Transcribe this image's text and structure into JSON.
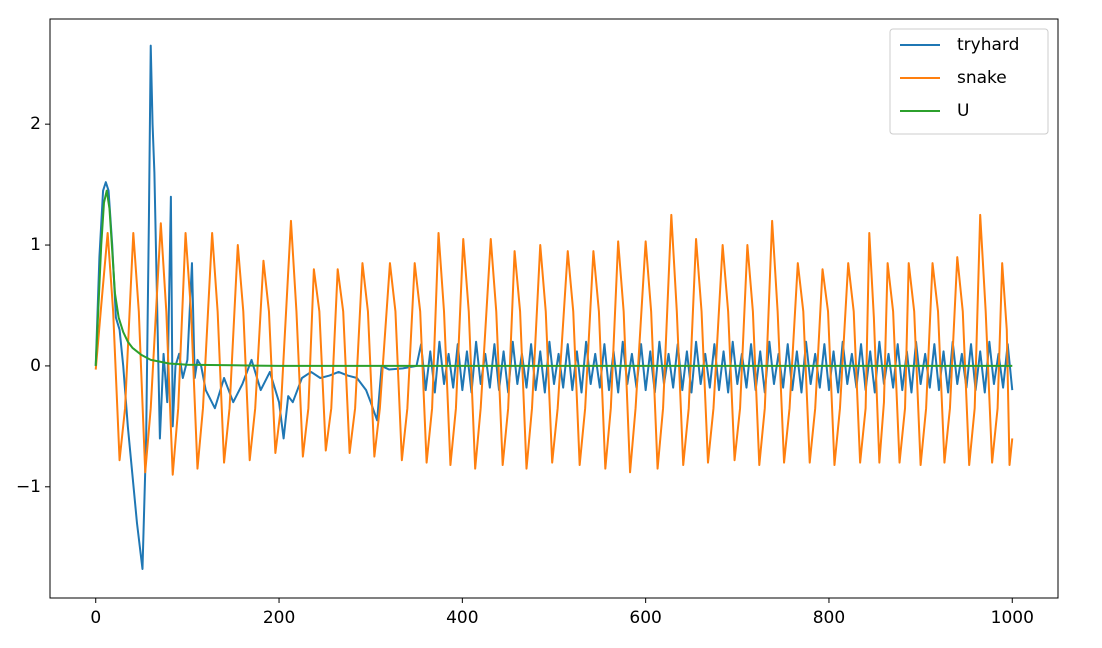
{
  "chart_data": {
    "type": "line",
    "xlim": [
      -49.9,
      1049.9
    ],
    "xticks": [
      0,
      200,
      400,
      600,
      800,
      1000
    ],
    "ylim": [
      -1.92,
      2.87
    ],
    "yticks": [
      {
        "value": -1,
        "label": "−1"
      },
      0,
      1,
      2
    ],
    "grid": false,
    "legend": "upper right",
    "series": [
      {
        "name": "tryhard",
        "color": "#1f77b4",
        "x": [
          0,
          4,
          8,
          11,
          14,
          18,
          22,
          26,
          30,
          35,
          40,
          45,
          51,
          55,
          58,
          60,
          62,
          64,
          67,
          70,
          74,
          78,
          82,
          84,
          87,
          91,
          95,
          100,
          105,
          108,
          111,
          115,
          120,
          130,
          140,
          150,
          160,
          170,
          180,
          190,
          200,
          205,
          210,
          215,
          225,
          235,
          245,
          255,
          265,
          275,
          285,
          295,
          300,
          307,
          312,
          320,
          335,
          350,
          355,
          360,
          365,
          370,
          375,
          380,
          385,
          390,
          395,
          400,
          405,
          410,
          415,
          420,
          425,
          430,
          435,
          440,
          445,
          450,
          455,
          460,
          465,
          470,
          475,
          480,
          485,
          490,
          495,
          500,
          505,
          510,
          515,
          520,
          525,
          530,
          535,
          540,
          545,
          550,
          555,
          560,
          565,
          570,
          575,
          580,
          585,
          590,
          595,
          600,
          605,
          610,
          615,
          620,
          625,
          630,
          635,
          640,
          645,
          650,
          655,
          660,
          665,
          670,
          675,
          680,
          685,
          690,
          695,
          700,
          705,
          710,
          715,
          720,
          725,
          730,
          735,
          740,
          745,
          750,
          755,
          760,
          765,
          770,
          775,
          780,
          785,
          790,
          795,
          800,
          805,
          810,
          815,
          820,
          825,
          830,
          835,
          840,
          845,
          850,
          855,
          860,
          865,
          870,
          875,
          880,
          885,
          890,
          895,
          900,
          905,
          910,
          915,
          920,
          925,
          930,
          935,
          940,
          945,
          950,
          955,
          960,
          965,
          970,
          975,
          980,
          985,
          990,
          995,
          1000
        ],
        "values": [
          0,
          0.9,
          1.45,
          1.52,
          1.45,
          1.0,
          0.4,
          0.3,
          0.0,
          -0.5,
          -0.9,
          -1.3,
          -1.68,
          -0.6,
          1.2,
          2.65,
          2.0,
          1.6,
          0.5,
          -0.6,
          0.1,
          -0.3,
          1.4,
          -0.5,
          0.0,
          0.1,
          -0.1,
          0.05,
          0.85,
          -0.1,
          0.05,
          0.0,
          -0.2,
          -0.35,
          -0.1,
          -0.3,
          -0.15,
          0.05,
          -0.2,
          -0.05,
          -0.3,
          -0.6,
          -0.25,
          -0.3,
          -0.1,
          -0.05,
          -0.1,
          -0.08,
          -0.05,
          -0.08,
          -0.1,
          -0.2,
          -0.3,
          -0.45,
          0.0,
          -0.03,
          -0.02,
          0.0,
          0.18,
          -0.2,
          0.12,
          -0.22,
          0.2,
          -0.15,
          0.1,
          -0.18,
          0.18,
          -0.2,
          0.12,
          -0.22,
          0.2,
          -0.15,
          0.1,
          -0.18,
          0.18,
          -0.2,
          0.12,
          -0.22,
          0.2,
          -0.15,
          0.1,
          -0.18,
          0.18,
          -0.2,
          0.12,
          -0.22,
          0.2,
          -0.15,
          0.1,
          -0.18,
          0.18,
          -0.2,
          0.12,
          -0.22,
          0.2,
          -0.15,
          0.1,
          -0.18,
          0.18,
          -0.2,
          0.12,
          -0.22,
          0.2,
          -0.15,
          0.1,
          -0.18,
          0.18,
          -0.2,
          0.12,
          -0.22,
          0.2,
          -0.15,
          0.1,
          -0.18,
          0.18,
          -0.2,
          0.12,
          -0.22,
          0.2,
          -0.15,
          0.1,
          -0.18,
          0.18,
          -0.2,
          0.12,
          -0.22,
          0.2,
          -0.15,
          0.1,
          -0.18,
          0.18,
          -0.2,
          0.12,
          -0.22,
          0.2,
          -0.15,
          0.1,
          -0.18,
          0.18,
          -0.2,
          0.12,
          -0.22,
          0.2,
          -0.15,
          0.1,
          -0.18,
          0.18,
          -0.2,
          0.12,
          -0.22,
          0.2,
          -0.15,
          0.1,
          -0.18,
          0.18,
          -0.2,
          0.12,
          -0.22,
          0.2,
          -0.15,
          0.1,
          -0.18,
          0.18,
          -0.2,
          0.12,
          -0.22,
          0.2,
          -0.15,
          0.1,
          -0.18,
          0.18,
          -0.2,
          0.12,
          -0.22,
          0.2,
          -0.15,
          0.1,
          -0.18,
          0.18,
          -0.2,
          0.12,
          -0.22,
          0.2,
          -0.15,
          0.1,
          -0.18,
          0.18,
          -0.2
        ]
      },
      {
        "name": "snake",
        "color": "#ff7f0e",
        "x": [
          0,
          6,
          13,
          19,
          26,
          32,
          41,
          47,
          54,
          60,
          71,
          77,
          84,
          90,
          98,
          104,
          111,
          117,
          127,
          133,
          140,
          146,
          155,
          161,
          168,
          174,
          183,
          189,
          196,
          202,
          213,
          219,
          226,
          232,
          238,
          244,
          251,
          257,
          264,
          270,
          277,
          283,
          291,
          297,
          304,
          310,
          321,
          327,
          334,
          340,
          348,
          354,
          361,
          367,
          374,
          380,
          387,
          393,
          401,
          407,
          414,
          420,
          431,
          437,
          444,
          450,
          457,
          463,
          470,
          476,
          485,
          491,
          498,
          504,
          515,
          521,
          528,
          534,
          543,
          549,
          556,
          562,
          570,
          576,
          583,
          589,
          600,
          606,
          613,
          619,
          628,
          634,
          641,
          647,
          655,
          661,
          668,
          674,
          684,
          690,
          697,
          703,
          711,
          717,
          724,
          730,
          738,
          744,
          751,
          757,
          766,
          772,
          779,
          785,
          793,
          799,
          806,
          812,
          821,
          827,
          834,
          840,
          844,
          849,
          855,
          860,
          864,
          870,
          877,
          883,
          887,
          893,
          900,
          906,
          913,
          919,
          926,
          932,
          940,
          946,
          953,
          959,
          965,
          971,
          978,
          984,
          989,
          994,
          997,
          1000
        ],
        "values": [
          -0.03,
          0.5,
          1.1,
          0.45,
          -0.78,
          -0.35,
          1.1,
          0.45,
          -0.88,
          -0.35,
          1.18,
          0.45,
          -0.9,
          -0.35,
          1.1,
          0.45,
          -0.85,
          -0.35,
          1.1,
          0.45,
          -0.8,
          -0.35,
          1.0,
          0.45,
          -0.78,
          -0.35,
          0.87,
          0.45,
          -0.72,
          -0.35,
          1.2,
          0.45,
          -0.75,
          -0.35,
          0.8,
          0.45,
          -0.7,
          -0.35,
          0.8,
          0.45,
          -0.72,
          -0.35,
          0.85,
          0.45,
          -0.75,
          -0.35,
          0.85,
          0.45,
          -0.78,
          -0.35,
          0.85,
          0.45,
          -0.8,
          -0.35,
          1.1,
          0.45,
          -0.82,
          -0.35,
          1.05,
          0.45,
          -0.85,
          -0.35,
          1.05,
          0.45,
          -0.82,
          -0.35,
          0.95,
          0.45,
          -0.85,
          -0.35,
          1.0,
          0.45,
          -0.8,
          -0.35,
          0.95,
          0.45,
          -0.82,
          -0.35,
          0.95,
          0.45,
          -0.85,
          -0.35,
          1.03,
          0.45,
          -0.88,
          -0.35,
          1.03,
          0.45,
          -0.85,
          -0.35,
          1.25,
          0.45,
          -0.82,
          -0.35,
          1.05,
          0.45,
          -0.8,
          -0.35,
          1.0,
          0.45,
          -0.78,
          -0.35,
          1.0,
          0.45,
          -0.82,
          -0.35,
          1.2,
          0.45,
          -0.8,
          -0.35,
          0.85,
          0.45,
          -0.8,
          -0.35,
          0.8,
          0.45,
          -0.82,
          -0.35,
          0.85,
          0.45,
          -0.8,
          -0.35,
          1.1,
          0.4,
          -0.8,
          -0.3,
          0.85,
          0.45,
          -0.8,
          -0.35,
          0.85,
          0.45,
          -0.82,
          -0.35,
          0.85,
          0.45,
          -0.8,
          -0.35,
          0.9,
          0.45,
          -0.82,
          -0.35,
          1.25,
          0.45,
          -0.8,
          -0.35,
          0.85,
          0.3,
          -0.82,
          -0.6
        ]
      },
      {
        "name": "U",
        "color": "#2ca02c",
        "x": [
          0,
          3,
          6,
          9,
          12,
          15,
          18,
          21,
          25,
          30,
          35,
          40,
          50,
          60,
          80,
          100,
          150,
          200,
          400,
          1000
        ],
        "values": [
          0,
          0.5,
          1.0,
          1.35,
          1.45,
          1.3,
          0.95,
          0.6,
          0.4,
          0.28,
          0.2,
          0.15,
          0.09,
          0.05,
          0.02,
          0.01,
          0.005,
          0,
          0,
          0
        ]
      }
    ]
  }
}
